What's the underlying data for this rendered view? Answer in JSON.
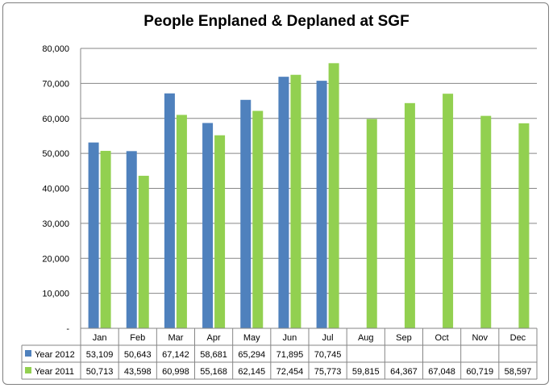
{
  "chart_data": {
    "type": "bar",
    "title": "People Enplaned & Deplaned at SGF",
    "categories": [
      "Jan",
      "Feb",
      "Mar",
      "Apr",
      "May",
      "Jun",
      "Jul",
      "Aug",
      "Sep",
      "Oct",
      "Nov",
      "Dec"
    ],
    "ylim": [
      0,
      80000
    ],
    "yticks": [
      "-",
      "10,000",
      "20,000",
      "30,000",
      "40,000",
      "50,000",
      "60,000",
      "70,000",
      "80,000"
    ],
    "grid": true,
    "legend": "data-table-left",
    "series": [
      {
        "name": "Year 2012",
        "color": "#4f81bd",
        "values": [
          53109,
          50643,
          67142,
          58681,
          65294,
          71895,
          70745,
          null,
          null,
          null,
          null,
          null
        ],
        "labels": [
          "53,109",
          "50,643",
          "67,142",
          "58,681",
          "65,294",
          "71,895",
          "70,745",
          "",
          "",
          "",
          "",
          ""
        ]
      },
      {
        "name": "Year 2011",
        "color": "#92d050",
        "values": [
          50713,
          43598,
          60998,
          55168,
          62145,
          72454,
          75773,
          59815,
          64367,
          67048,
          60719,
          58597
        ],
        "labels": [
          "50,713",
          "43,598",
          "60,998",
          "55,168",
          "62,145",
          "72,454",
          "75,773",
          "59,815",
          "64,367",
          "67,048",
          "60,719",
          "58,597"
        ]
      }
    ]
  }
}
